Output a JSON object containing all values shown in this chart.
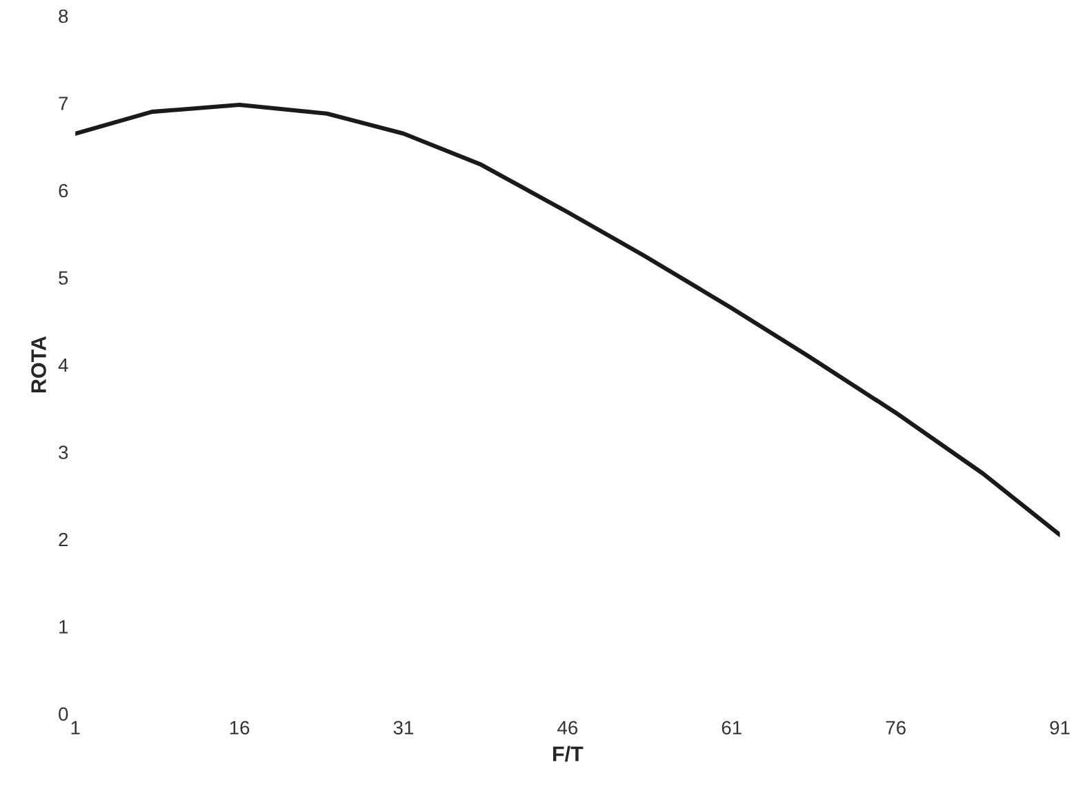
{
  "chart_data": {
    "type": "line",
    "xlabel": "F/T",
    "ylabel": "ROTA",
    "x": [
      1,
      8,
      16,
      24,
      31,
      38,
      46,
      53,
      61,
      68,
      76,
      84,
      91
    ],
    "series": [
      {
        "color": "#1a1a1a",
        "values": [
          6.65,
          6.9,
          6.98,
          6.88,
          6.65,
          6.3,
          5.75,
          5.25,
          4.65,
          4.1,
          3.45,
          2.75,
          2.05
        ]
      }
    ],
    "xlim": [
      1,
      91
    ],
    "xticks": [
      1,
      16,
      31,
      46,
      61,
      76,
      91
    ],
    "ylim": [
      0,
      8
    ],
    "yticks": [
      0,
      1,
      2,
      3,
      4,
      5,
      6,
      7,
      8
    ],
    "grid": false,
    "legend": false,
    "marker": "none",
    "line_style": "solid"
  }
}
